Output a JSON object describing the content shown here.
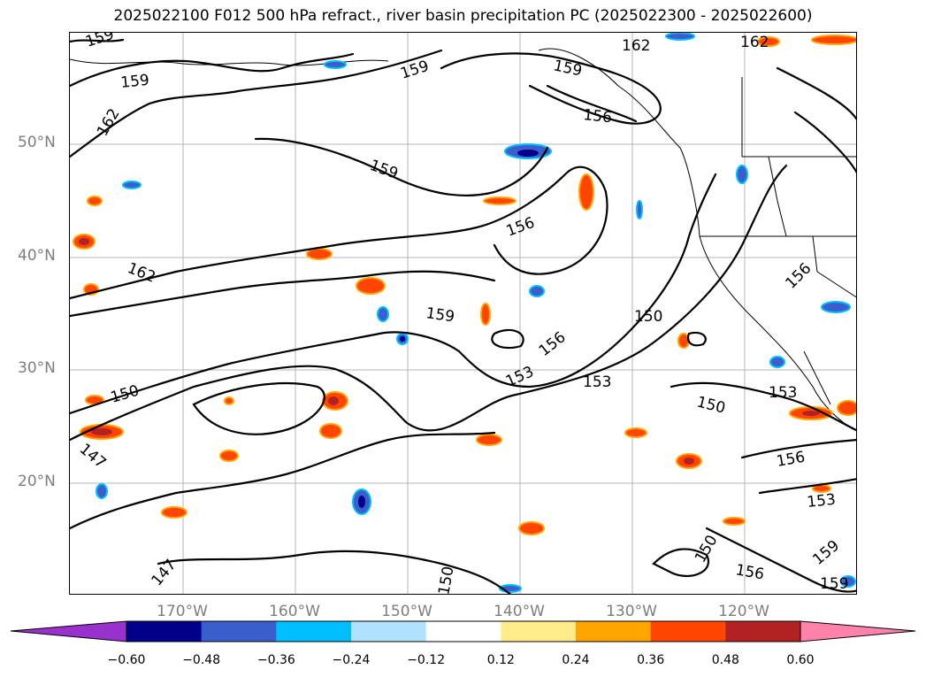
{
  "title": "2025022100 F012 500 hPa refract., river basin precipitation PC (2025022300 - 2025022600)",
  "lat_labels": [
    "50°N",
    "40°N",
    "30°N",
    "20°N"
  ],
  "lon_labels": [
    "170°W",
    "160°W",
    "150°W",
    "140°W",
    "130°W",
    "120°W"
  ],
  "contour_labels": [
    "159",
    "159",
    "162",
    "159",
    "162",
    "159",
    "162",
    "156",
    "159",
    "156",
    "162",
    "159",
    "156",
    "150",
    "156",
    "150",
    "153",
    "153",
    "153",
    "150",
    "147",
    "156",
    "153",
    "150",
    "156",
    "159",
    "159",
    "147",
    "150"
  ],
  "colorbar": {
    "tick_labels": [
      "−0.60",
      "−0.48",
      "−0.36",
      "−0.24",
      "−0.12",
      "0.12",
      "0.24",
      "0.36",
      "0.48",
      "0.60"
    ],
    "colors": [
      "#9932CC",
      "#00008B",
      "#3A5FCD",
      "#00BFFF",
      "#B0E2FF",
      "#FFFFFF",
      "#FFEC8B",
      "#FFA500",
      "#FF4500",
      "#B22222",
      "#FF82AB"
    ]
  }
}
